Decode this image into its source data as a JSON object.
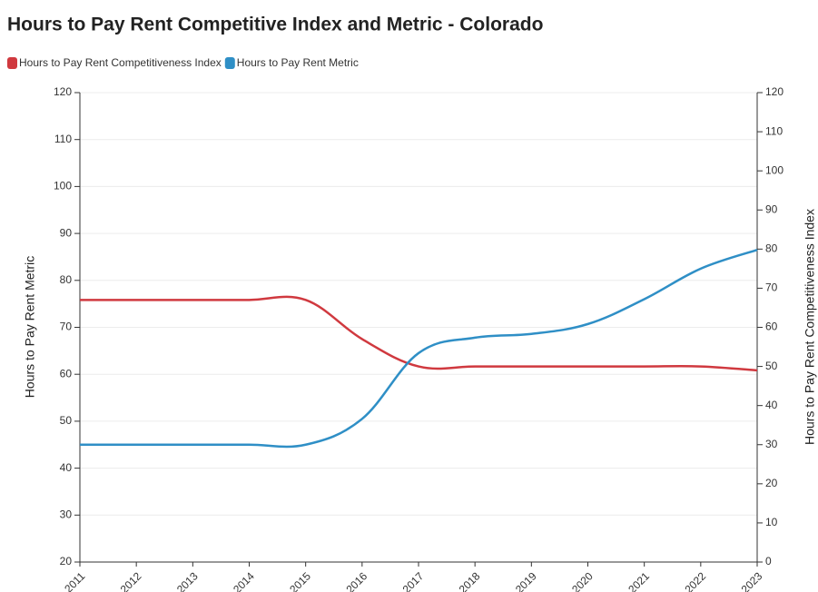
{
  "chart_data": {
    "type": "line",
    "title": "Hours to Pay Rent Competitive Index and Metric - Colorado",
    "categories": [
      "2011",
      "2012",
      "2013",
      "2014",
      "2015",
      "2016",
      "2017",
      "2018",
      "2019",
      "2020",
      "2021",
      "2022",
      "2023"
    ],
    "series": [
      {
        "name": "Hours to Pay Rent Competitiveness Index",
        "color": "#d0393f",
        "axis": "y2",
        "values": [
          67,
          67,
          67,
          67,
          67,
          57,
          50,
          50,
          50,
          50,
          50,
          50,
          49
        ]
      },
      {
        "name": "Hours to Pay Rent Metric",
        "color": "#2f8fc6",
        "axis": "y",
        "values": [
          45,
          45,
          45,
          45,
          45,
          50.5,
          64.5,
          67.8,
          68.6,
          70.7,
          76,
          82.5,
          86.5
        ]
      }
    ],
    "ylabel": "Hours to Pay Rent Metric",
    "y2label": "Hours to Pay Rent Competitiveness Index",
    "ylim": [
      20,
      120
    ],
    "yticks": [
      20,
      30,
      40,
      50,
      60,
      70,
      80,
      90,
      100,
      110,
      120
    ],
    "y2lim": [
      0,
      120
    ],
    "y2ticks": [
      0,
      10,
      20,
      30,
      40,
      50,
      60,
      70,
      80,
      90,
      100,
      110,
      120
    ],
    "grid": true
  }
}
